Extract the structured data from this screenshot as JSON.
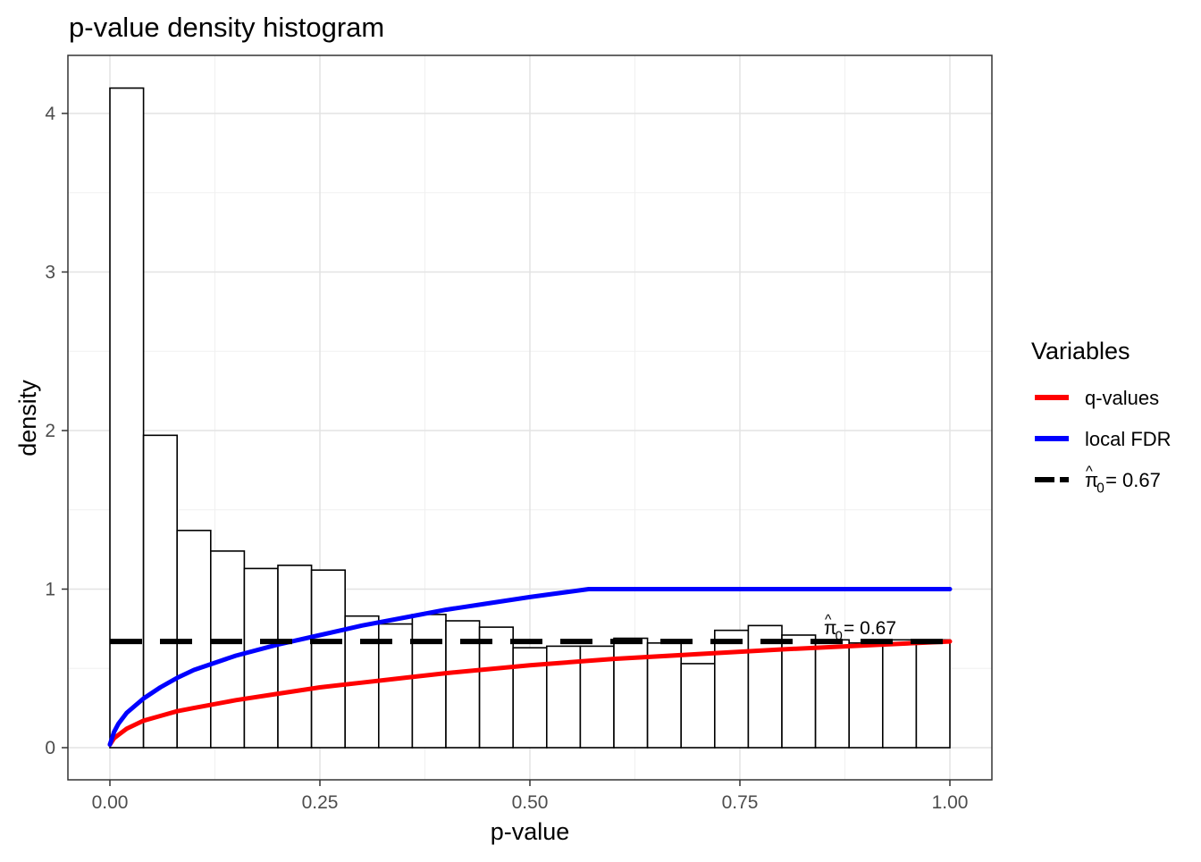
{
  "chart_data": {
    "type": "bar",
    "title": "p-value density histogram",
    "xlabel": "p-value",
    "ylabel": "density",
    "xlim": [
      -0.1,
      1.1
    ],
    "ylim": [
      -0.2,
      4.35
    ],
    "x_ticks": [
      "0.00",
      "0.25",
      "0.50",
      "0.75",
      "1.00"
    ],
    "x_tick_values": [
      0,
      0.25,
      0.5,
      0.75,
      1.0
    ],
    "y_ticks": [
      "0",
      "1",
      "2",
      "3",
      "4"
    ],
    "y_tick_values": [
      0,
      1,
      2,
      3,
      4
    ],
    "grid": true,
    "bin_width": 0.04,
    "bin_starts": [
      0.0,
      0.04,
      0.08,
      0.12,
      0.16,
      0.2,
      0.24,
      0.28,
      0.32,
      0.36,
      0.4,
      0.44,
      0.48,
      0.52,
      0.56,
      0.6,
      0.64,
      0.68,
      0.72,
      0.76,
      0.8,
      0.84,
      0.88,
      0.92,
      0.96
    ],
    "densities": [
      4.16,
      1.97,
      1.37,
      1.24,
      1.13,
      1.15,
      1.12,
      0.83,
      0.78,
      0.84,
      0.8,
      0.76,
      0.63,
      0.64,
      0.64,
      0.69,
      0.66,
      0.53,
      0.74,
      0.77,
      0.71,
      0.68,
      0.66,
      0.68,
      0.68
    ],
    "series": [
      {
        "name": "q-values",
        "color": "#ff0000",
        "x": [
          0.0,
          0.005,
          0.01,
          0.02,
          0.04,
          0.06,
          0.08,
          0.1,
          0.15,
          0.2,
          0.25,
          0.3,
          0.35,
          0.4,
          0.5,
          0.6,
          0.7,
          0.8,
          0.9,
          1.0
        ],
        "y": [
          0.02,
          0.06,
          0.08,
          0.12,
          0.17,
          0.2,
          0.23,
          0.25,
          0.3,
          0.34,
          0.38,
          0.41,
          0.44,
          0.47,
          0.52,
          0.56,
          0.59,
          0.62,
          0.645,
          0.67
        ]
      },
      {
        "name": "local FDR",
        "color": "#0000ff",
        "x": [
          0.0,
          0.005,
          0.01,
          0.02,
          0.04,
          0.06,
          0.08,
          0.1,
          0.15,
          0.2,
          0.25,
          0.3,
          0.35,
          0.4,
          0.45,
          0.5,
          0.57,
          0.6,
          0.7,
          0.8,
          0.9,
          1.0
        ],
        "y": [
          0.02,
          0.1,
          0.15,
          0.22,
          0.31,
          0.38,
          0.44,
          0.49,
          0.58,
          0.65,
          0.71,
          0.77,
          0.82,
          0.87,
          0.91,
          0.95,
          1.0,
          1.0,
          1.0,
          1.0,
          1.0,
          1.0
        ]
      }
    ],
    "pi0": 0.67,
    "pi0_annotation": "= 0.67",
    "pi0_symbol": "π",
    "pi0_hat": "^",
    "pi0_sub": "0",
    "legend": {
      "title": "Variables",
      "position": "right",
      "items": [
        {
          "label": "q-values",
          "color": "#ff0000",
          "style": "solid"
        },
        {
          "label": "local FDR",
          "color": "#0000ff",
          "style": "solid"
        },
        {
          "label": "= 0.67",
          "color": "#000000",
          "style": "dashed"
        }
      ]
    }
  }
}
